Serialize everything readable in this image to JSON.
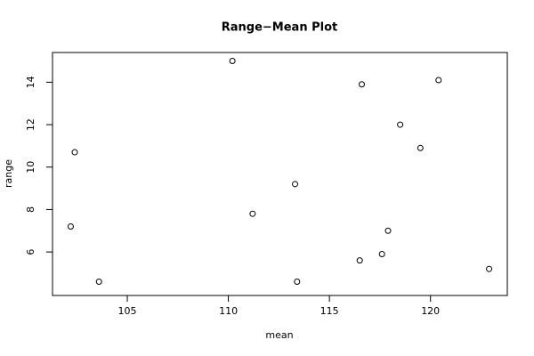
{
  "chart_data": {
    "type": "scatter",
    "title": "Range−Mean Plot",
    "x_label": "mean",
    "y_label": "range",
    "x": [
      102.4,
      102.2,
      103.6,
      110.2,
      111.2,
      113.3,
      113.4,
      116.6,
      116.5,
      118.5,
      117.6,
      117.9,
      119.5,
      120.4,
      122.9
    ],
    "values": [
      10.7,
      7.2,
      4.6,
      15,
      7.8,
      9.2,
      4.6,
      13.9,
      5.6,
      12,
      5.9,
      7.0,
      10.9,
      14.1,
      5.2
    ],
    "color": "#000000",
    "xlim": [
      101.3,
      123.8
    ],
    "ylim": [
      3.95,
      15.4
    ],
    "xticks": [
      105,
      110,
      115,
      120
    ],
    "yticks": [
      6,
      8,
      10,
      12,
      14
    ]
  }
}
